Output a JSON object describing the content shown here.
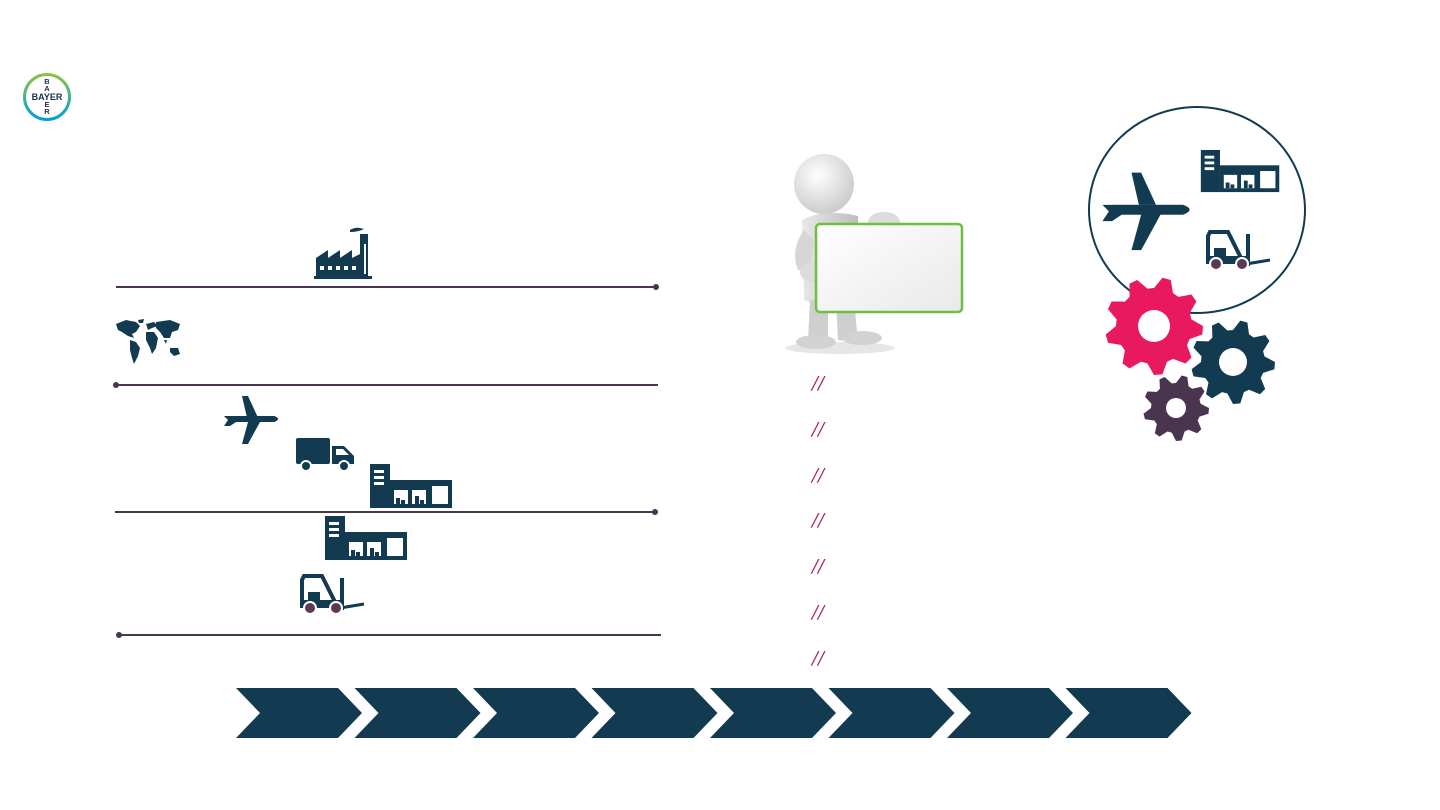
{
  "logo": {
    "vertical": [
      "B",
      "A",
      "Y",
      "E",
      "R"
    ],
    "horizontal": "BAYER",
    "ring_colors": [
      "#89c540",
      "#00a0dc"
    ]
  },
  "colors": {
    "navy": "#123a50",
    "divider": "#4a3550",
    "slash": "#b0245a",
    "gear_pink": "#e8195e",
    "gear_navy": "#123a50",
    "gear_plum": "#4a3550",
    "board_border": "#6cbf44"
  },
  "icons": {
    "row1": [
      "factory-icon"
    ],
    "row2": [
      "world-map-icon"
    ],
    "row3": [
      "airplane-icon",
      "delivery-truck-icon",
      "warehouse-icon"
    ],
    "row4": [
      "warehouse-icon",
      "forklift-icon"
    ],
    "circle": [
      "airplane-icon",
      "warehouse-icon",
      "forklift-icon"
    ],
    "gears": [
      "gear-pink-icon",
      "gear-navy-icon",
      "gear-plum-icon"
    ]
  },
  "separators": [
    "//",
    "//",
    "//",
    "//",
    "//",
    "//",
    "//"
  ],
  "process_steps": 8
}
